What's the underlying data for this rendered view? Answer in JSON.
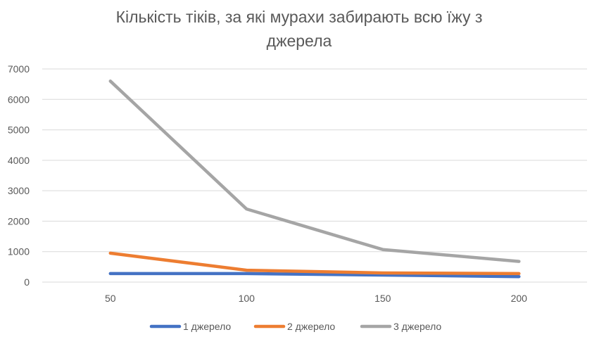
{
  "chart_data": {
    "type": "line",
    "title_line1": "Кількість тіків, за які мурахи забирають всю їжу з",
    "title_line2": "джерела",
    "categories": [
      "50",
      "100",
      "150",
      "200"
    ],
    "series": [
      {
        "name": "1 джерело",
        "color": "#4472C4",
        "values": [
          280,
          280,
          230,
          180
        ]
      },
      {
        "name": "2 джерело",
        "color": "#ED7D31",
        "values": [
          950,
          390,
          300,
          280
        ]
      },
      {
        "name": "3 джерело",
        "color": "#A5A5A5",
        "values": [
          6600,
          2400,
          1070,
          680
        ]
      }
    ],
    "y_ticks": [
      "0",
      "1000",
      "2000",
      "3000",
      "4000",
      "5000",
      "6000",
      "7000"
    ],
    "ylim": [
      0,
      7000
    ],
    "grid": true,
    "legend_position": "bottom",
    "xlabel": "",
    "ylabel": ""
  }
}
